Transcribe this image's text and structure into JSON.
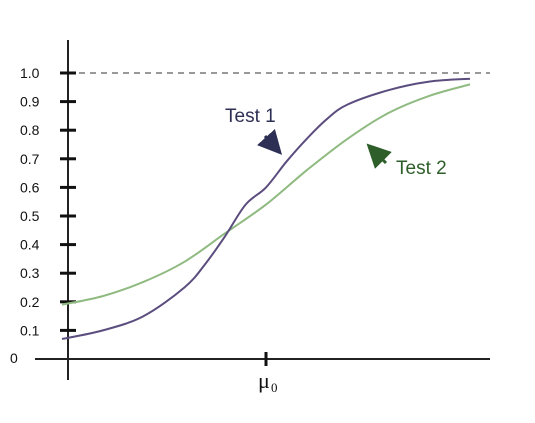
{
  "chart_data": {
    "type": "line",
    "ylim": [
      0,
      1.0
    ],
    "y_ticks": [
      "0.1",
      "0.2",
      "0.3",
      "0.4",
      "0.5",
      "0.6",
      "0.7",
      "0.8",
      "0.9",
      "1.0"
    ],
    "y_origin_label": "0",
    "x_tick_label": "μ",
    "x_tick_subscript": "0",
    "reference_line": {
      "y": 1.0,
      "style": "dashed"
    },
    "grid": false,
    "series": [
      {
        "name": "Test 1",
        "color": "#5b4d7e",
        "x": [
          -1.0,
          -0.8,
          -0.6,
          -0.4,
          -0.3,
          -0.2,
          -0.1,
          0.0,
          0.1,
          0.2,
          0.3,
          0.4,
          0.6,
          0.8,
          1.0
        ],
        "y": [
          0.07,
          0.1,
          0.15,
          0.25,
          0.33,
          0.43,
          0.54,
          0.6,
          0.69,
          0.77,
          0.84,
          0.89,
          0.94,
          0.97,
          0.98
        ]
      },
      {
        "name": "Test 2",
        "color": "#8fba80",
        "x": [
          -1.0,
          -0.8,
          -0.6,
          -0.4,
          -0.2,
          0.0,
          0.2,
          0.4,
          0.6,
          0.8,
          1.0
        ],
        "y": [
          0.19,
          0.22,
          0.27,
          0.34,
          0.44,
          0.54,
          0.66,
          0.77,
          0.86,
          0.92,
          0.96
        ]
      }
    ],
    "annotations": [
      {
        "text": "Test 1",
        "color": "#2e2f55"
      },
      {
        "text": "Test 2",
        "color": "#2e5e2a"
      }
    ]
  }
}
